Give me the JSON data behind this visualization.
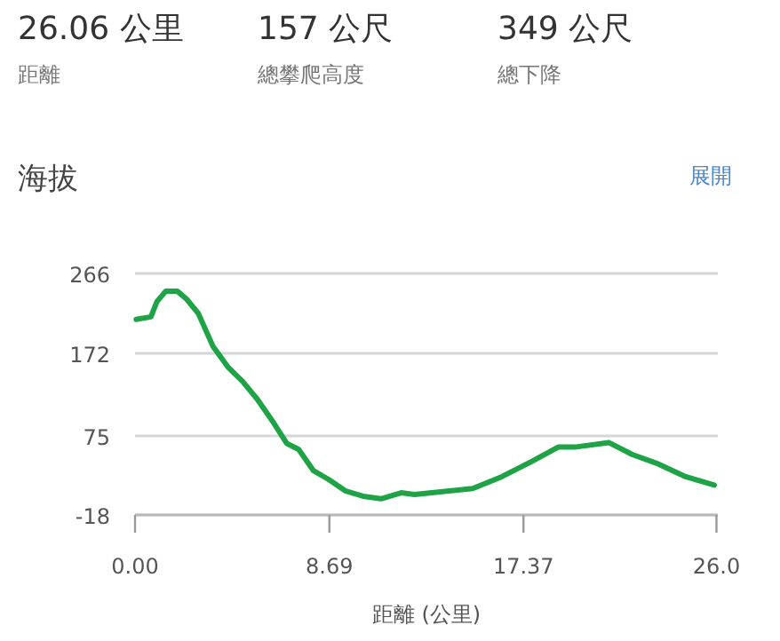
{
  "chart_data": {
    "type": "line",
    "title": "海拔",
    "xlabel": "距離 (公里)",
    "annotations": [
      "26.06 公里",
      "距離",
      "157 公尺",
      "總攀爬高度",
      "349 公尺",
      "總下降",
      "展開"
    ],
    "xlim": [
      0,
      26.06
    ],
    "xticks": [
      {
        "value": 0,
        "label": "0.00"
      },
      8.69,
      17.37,
      {
        "value": 26.0,
        "label": "26.0"
      }
    ],
    "ylim": [
      -18,
      266
    ],
    "yticks": [
      -18,
      75,
      172,
      266
    ],
    "grid": "y",
    "series": [
      {
        "color": "#1fa347",
        "x": [
          0.05,
          0.71,
          0.98,
          1.37,
          1.9,
          2.3,
          2.83,
          3.49,
          4.15,
          4.81,
          5.47,
          6.13,
          6.79,
          7.32,
          7.98,
          8.64,
          9.43,
          10.2,
          11.0,
          11.9,
          12.5,
          15.1,
          16.4,
          17.75,
          18.94,
          19.73,
          21.2,
          22.24,
          23.3,
          24.62,
          25.9
        ],
        "values": [
          212,
          215,
          233,
          245,
          245,
          236,
          219,
          180,
          156,
          139,
          118,
          93,
          66,
          59,
          34,
          24,
          10,
          4,
          1,
          8,
          6,
          13,
          27,
          45,
          62,
          62,
          67,
          53,
          43,
          27,
          17
        ]
      }
    ]
  }
}
